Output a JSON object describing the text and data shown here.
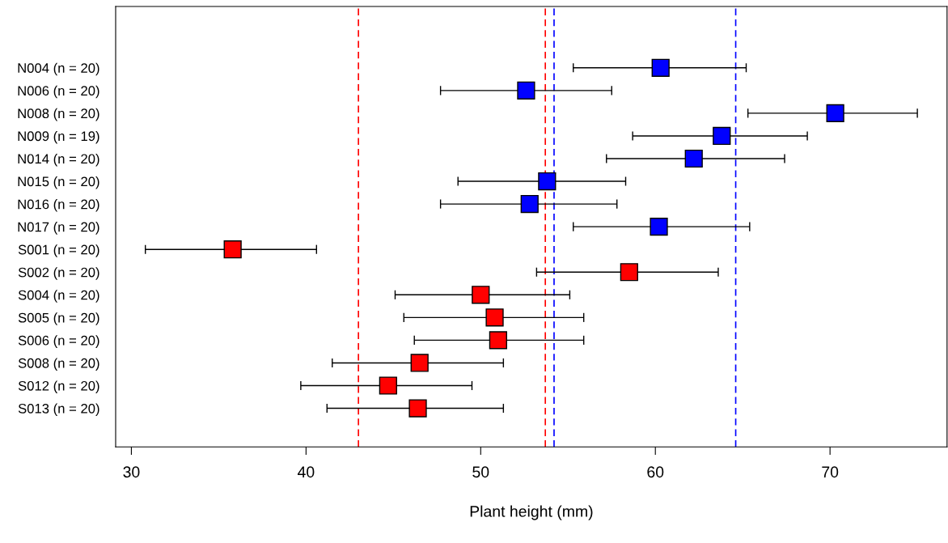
{
  "chart_data": {
    "type": "scatter",
    "orientation": "horizontal",
    "xlabel": "Plant height (mm)",
    "categories": [
      "N004 (n = 20)",
      "N006 (n = 20)",
      "N008 (n = 20)",
      "N009 (n = 19)",
      "N014 (n = 20)",
      "N015 (n = 20)",
      "N016 (n = 20)",
      "N017 (n = 20)",
      "S001 (n = 20)",
      "S002 (n = 20)",
      "S004 (n = 20)",
      "S005 (n = 20)",
      "S006 (n = 20)",
      "S008 (n = 20)",
      "S012 (n = 20)",
      "S013 (n = 20)"
    ],
    "series": [
      {
        "color": "#0000ff",
        "values": [
          60.3,
          52.6,
          70.3,
          63.8,
          62.2,
          53.8,
          52.8,
          60.2,
          null,
          null,
          null,
          null,
          null,
          null,
          null,
          null
        ],
        "errors": [
          [
            55.3,
            65.2
          ],
          [
            47.7,
            57.5
          ],
          [
            65.3,
            75.0
          ],
          [
            58.7,
            68.7
          ],
          [
            57.2,
            67.4
          ],
          [
            48.7,
            58.3
          ],
          [
            47.7,
            57.8
          ],
          [
            55.3,
            65.4
          ],
          null,
          null,
          null,
          null,
          null,
          null,
          null,
          null
        ]
      },
      {
        "color": "#ff0000",
        "values": [
          null,
          null,
          null,
          null,
          null,
          null,
          null,
          null,
          35.8,
          58.5,
          50.0,
          50.8,
          51.0,
          46.5,
          44.7,
          46.4
        ],
        "errors": [
          null,
          null,
          null,
          null,
          null,
          null,
          null,
          null,
          [
            30.8,
            40.6
          ],
          [
            53.2,
            63.6
          ],
          [
            45.1,
            55.1
          ],
          [
            45.6,
            55.9
          ],
          [
            46.2,
            55.9
          ],
          [
            41.5,
            51.3
          ],
          [
            39.7,
            49.5
          ],
          [
            41.2,
            51.3
          ]
        ]
      }
    ],
    "xlim": [
      29.1,
      76.7
    ],
    "xticks": [
      30,
      40,
      50,
      60,
      70
    ],
    "ref_lines": [
      {
        "axis": "x",
        "value": 43.0,
        "color": "#ff0000",
        "line_style": "dashed"
      },
      {
        "axis": "x",
        "value": 53.7,
        "color": "#ff0000",
        "line_style": "dashed"
      },
      {
        "axis": "x",
        "value": 54.2,
        "color": "#0000ff",
        "line_style": "dashed"
      },
      {
        "axis": "x",
        "value": 64.6,
        "color": "#0000ff",
        "line_style": "dashed"
      }
    ],
    "marker": "square",
    "grid": false,
    "legend": false
  }
}
